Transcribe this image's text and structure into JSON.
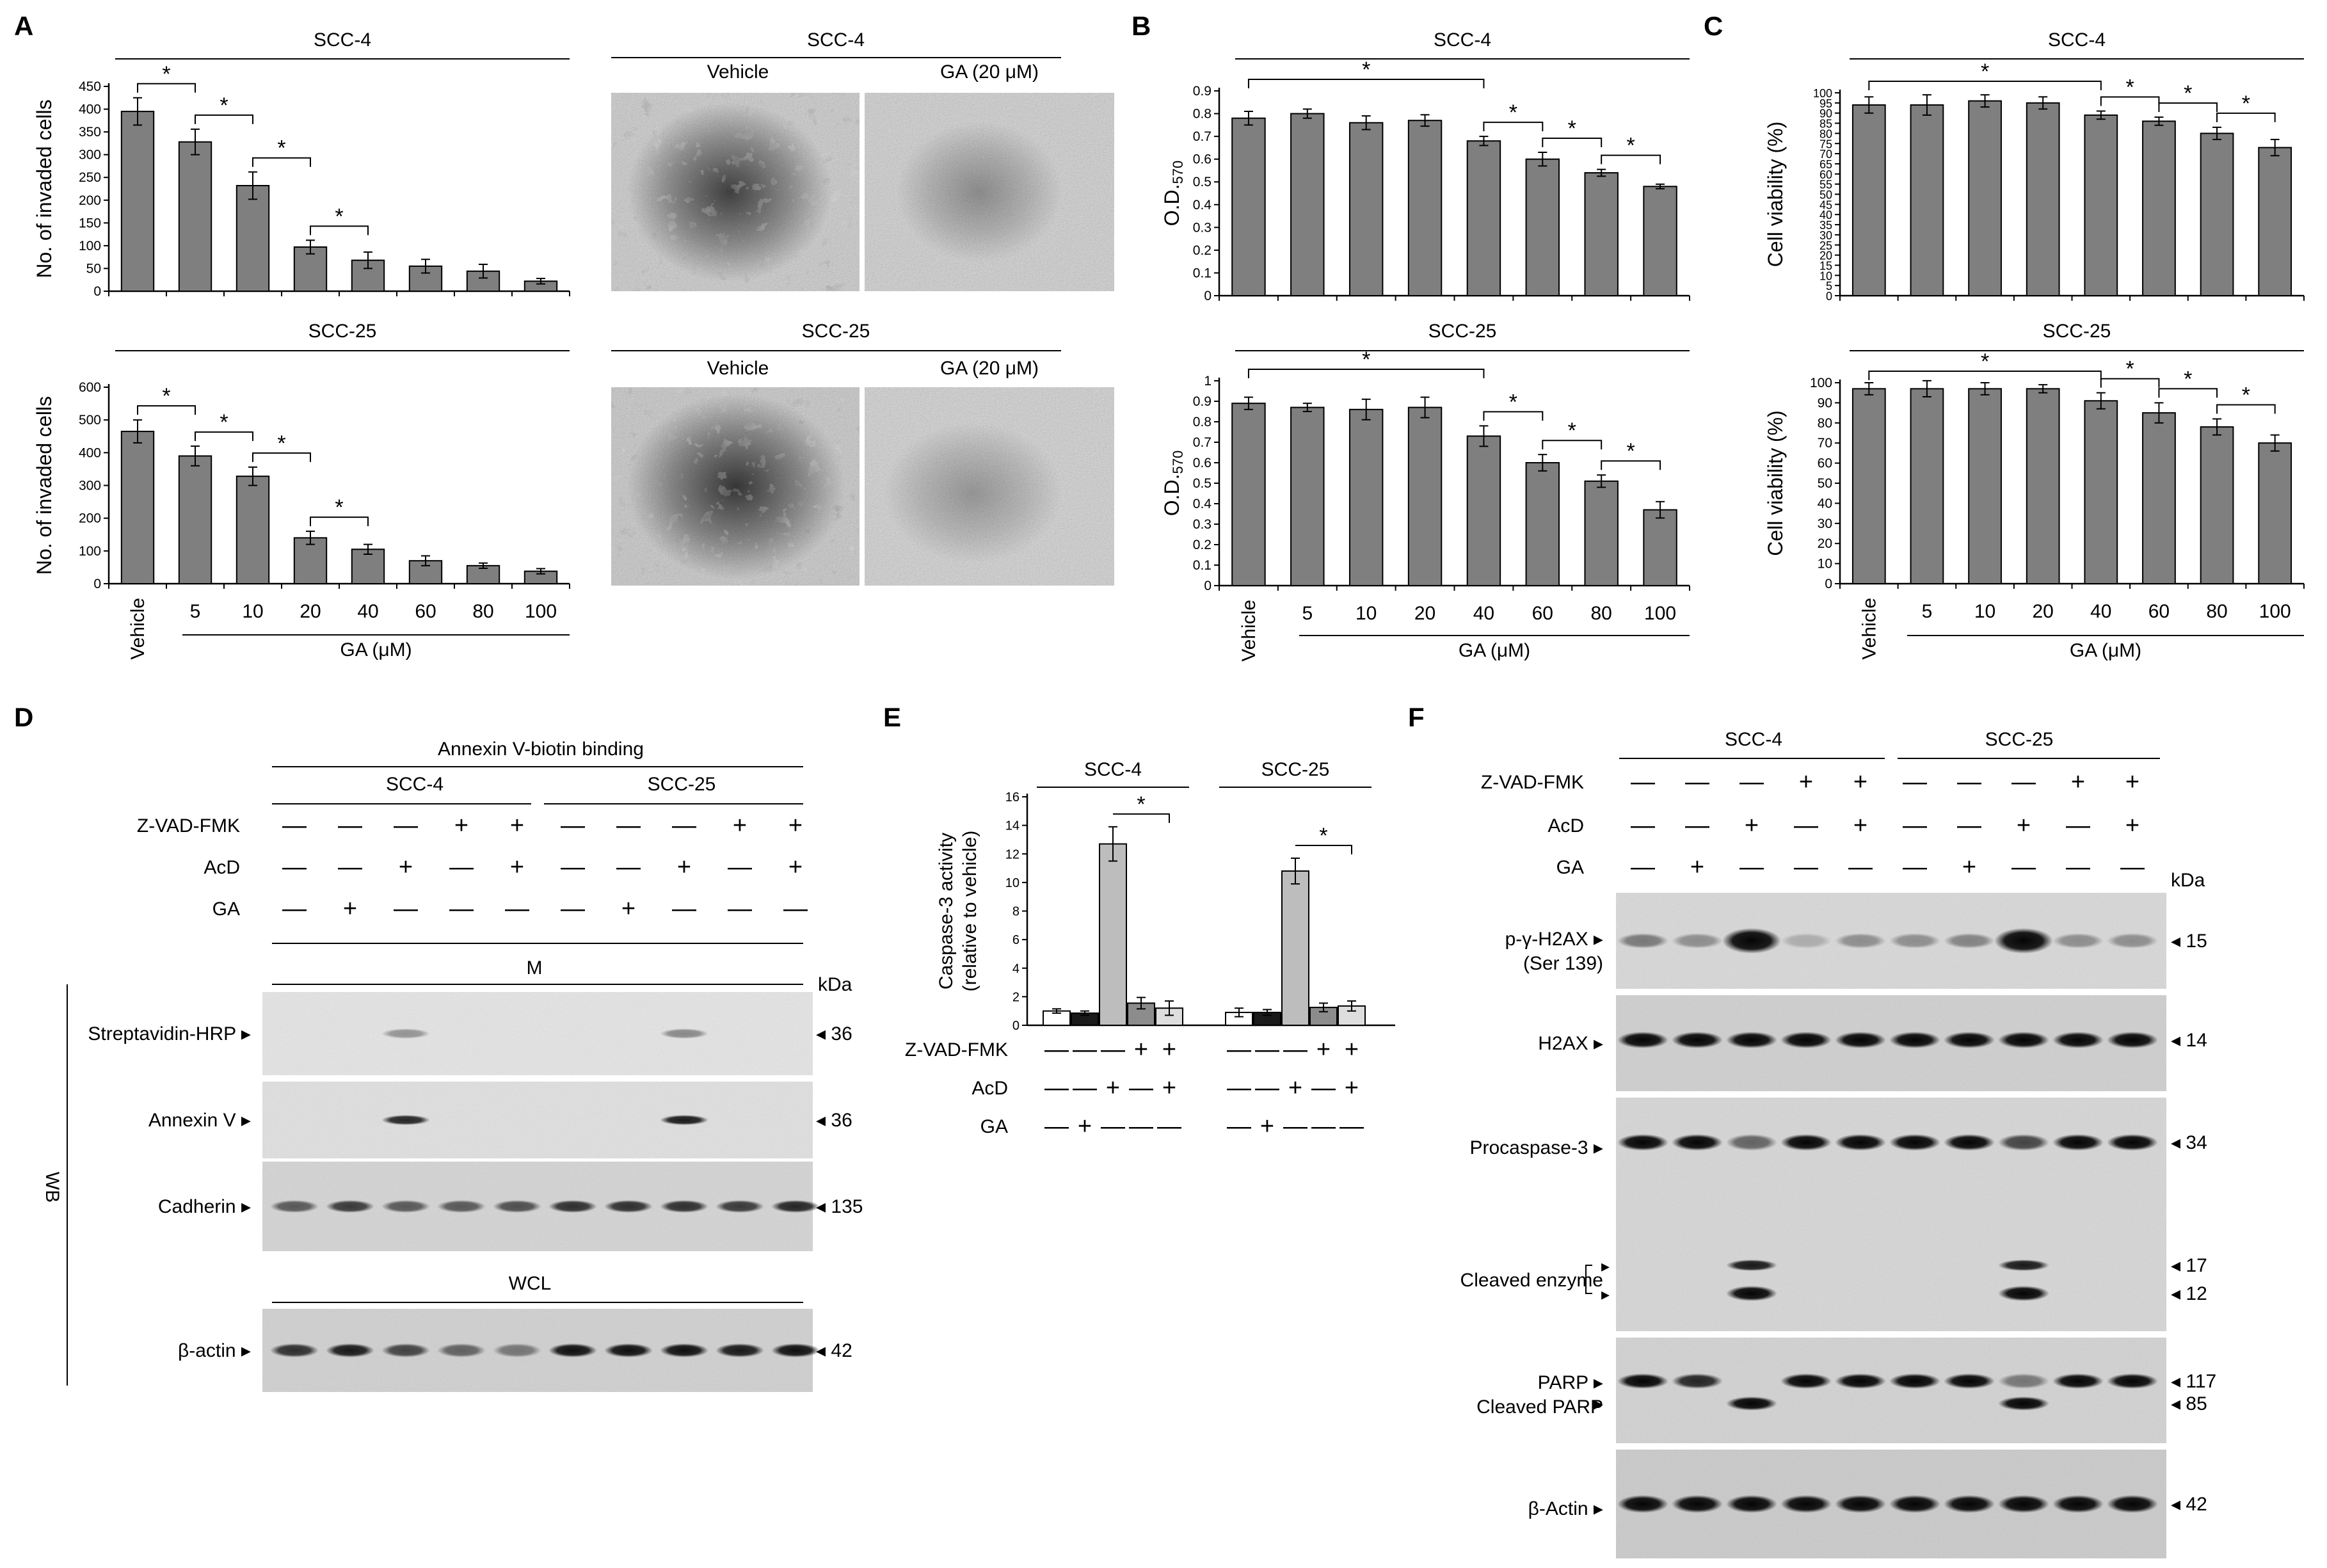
{
  "panel_labels": [
    "A",
    "B",
    "C",
    "D",
    "E",
    "F"
  ],
  "units": {
    "gam": "GA (μM)",
    "kda": "kDa"
  },
  "panelA": {
    "micro_titles": [
      "SCC-4",
      "SCC-25"
    ],
    "micro_headers": {
      "vehicle": "Vehicle",
      "ga": "GA (20 μM)"
    }
  },
  "panelD": {
    "title": "Annexin V-biotin binding",
    "groups": [
      "SCC-4",
      "SCC-25"
    ],
    "treatments": [
      "Z-VAD-FMK",
      "AcD",
      "GA"
    ],
    "signs": [
      [
        "—",
        "—",
        "—",
        "+",
        "+",
        "—",
        "—",
        "—",
        "+",
        "+"
      ],
      [
        "—",
        "—",
        "+",
        "—",
        "+",
        "—",
        "—",
        "+",
        "—",
        "+"
      ],
      [
        "—",
        "+",
        "—",
        "—",
        "—",
        "—",
        "+",
        "—",
        "—",
        "—"
      ]
    ],
    "fraction_m": "M",
    "fraction_wcl": "WCL",
    "wb": "WB",
    "blots": [
      {
        "name": "Streptavidin-HRP",
        "kda": "36"
      },
      {
        "name": "Annexin V",
        "kda": "36"
      },
      {
        "name": "Cadherin",
        "kda": "135"
      },
      {
        "name": "β-actin",
        "kda": "42"
      }
    ]
  },
  "panelE": {
    "signs": [
      [
        "—",
        "—",
        "—",
        "+",
        "+"
      ],
      [
        "—",
        "—",
        "+",
        "—",
        "+"
      ],
      [
        "—",
        "+",
        "—",
        "—",
        "—"
      ]
    ]
  },
  "panelF": {
    "groups": [
      "SCC-4",
      "SCC-25"
    ],
    "treatments": [
      "Z-VAD-FMK",
      "AcD",
      "GA"
    ],
    "signs": [
      [
        "—",
        "—",
        "—",
        "+",
        "+",
        "—",
        "—",
        "—",
        "+",
        "+"
      ],
      [
        "—",
        "—",
        "+",
        "—",
        "+",
        "—",
        "—",
        "+",
        "—",
        "+"
      ],
      [
        "—",
        "+",
        "—",
        "—",
        "—",
        "—",
        "+",
        "—",
        "—",
        "—"
      ]
    ],
    "blots": [
      {
        "name": "p-γ-H2AX",
        "name2": "(Ser 139)",
        "kda": [
          "15"
        ]
      },
      {
        "name": "H2AX",
        "kda": [
          "14"
        ]
      },
      {
        "name": "Procaspase-3",
        "name2": "Cleaved enzyme",
        "kda": [
          "34",
          "17",
          "12"
        ]
      },
      {
        "name": "PARP",
        "name2": "Cleaved PARP",
        "kda": [
          "117",
          "85"
        ]
      },
      {
        "name": "β-Actin",
        "kda": [
          "42"
        ]
      }
    ]
  },
  "chart_data": [
    {
      "id": "A1",
      "type": "bar",
      "title": "SCC-4",
      "ylabel": "No. of invaded cells",
      "xlabel": "",
      "categories": [
        "Vehicle",
        "5",
        "10",
        "20",
        "40",
        "60",
        "80",
        "100"
      ],
      "values": [
        395,
        328,
        232,
        97,
        68,
        55,
        44,
        22
      ],
      "errors": [
        30,
        28,
        30,
        15,
        18,
        15,
        15,
        6
      ],
      "ylim": [
        0,
        450
      ],
      "yticks": [
        0,
        50,
        100,
        150,
        200,
        250,
        300,
        350,
        400,
        450
      ],
      "sig": [
        [
          0,
          1
        ],
        [
          1,
          2
        ],
        [
          2,
          3
        ],
        [
          3,
          4
        ]
      ],
      "star": "*"
    },
    {
      "id": "A2",
      "type": "bar",
      "title": "SCC-25",
      "ylabel": "No. of invaded cells",
      "xlabel": "GA (μM)",
      "categories": [
        "Vehicle",
        "5",
        "10",
        "20",
        "40",
        "60",
        "80",
        "100"
      ],
      "values": [
        465,
        390,
        328,
        140,
        105,
        70,
        55,
        38
      ],
      "errors": [
        35,
        30,
        28,
        20,
        15,
        15,
        8,
        8
      ],
      "ylim": [
        0,
        600
      ],
      "yticks": [
        0,
        100,
        200,
        300,
        400,
        500,
        600
      ],
      "sig": [
        [
          0,
          1
        ],
        [
          1,
          2
        ],
        [
          2,
          3
        ],
        [
          3,
          4
        ]
      ],
      "star": "*"
    },
    {
      "id": "B1",
      "type": "bar",
      "title": "SCC-4",
      "ylabel": "O.D.570",
      "xlabel": "",
      "categories": [
        "Vehicle",
        "5",
        "10",
        "20",
        "40",
        "60",
        "80",
        "100"
      ],
      "values": [
        0.78,
        0.8,
        0.76,
        0.77,
        0.68,
        0.6,
        0.54,
        0.48
      ],
      "errors": [
        0.03,
        0.02,
        0.03,
        0.025,
        0.02,
        0.03,
        0.015,
        0.01
      ],
      "ylim": [
        0,
        0.9
      ],
      "yticks": [
        0,
        0.1,
        0.2,
        0.3,
        0.4,
        0.5,
        0.6,
        0.7,
        0.8,
        0.9
      ],
      "sig": [
        [
          0,
          4
        ],
        [
          4,
          5
        ],
        [
          5,
          6
        ],
        [
          6,
          7
        ]
      ],
      "star": "*"
    },
    {
      "id": "B2",
      "type": "bar",
      "title": "SCC-25",
      "ylabel": "O.D.570",
      "xlabel": "GA (μM)",
      "categories": [
        "Vehicle",
        "5",
        "10",
        "20",
        "40",
        "60",
        "80",
        "100"
      ],
      "values": [
        0.89,
        0.87,
        0.86,
        0.87,
        0.73,
        0.6,
        0.51,
        0.37
      ],
      "errors": [
        0.03,
        0.02,
        0.05,
        0.05,
        0.05,
        0.04,
        0.03,
        0.04
      ],
      "ylim": [
        0,
        1
      ],
      "yticks": [
        0,
        0.1,
        0.2,
        0.3,
        0.4,
        0.5,
        0.6,
        0.7,
        0.8,
        0.9,
        1
      ],
      "sig": [
        [
          0,
          4
        ],
        [
          4,
          5
        ],
        [
          5,
          6
        ],
        [
          6,
          7
        ]
      ],
      "star": "*"
    },
    {
      "id": "C1",
      "type": "bar",
      "title": "SCC-4",
      "ylabel": "Cell viability (%)",
      "xlabel": "",
      "categories": [
        "Vehicle",
        "5",
        "10",
        "20",
        "40",
        "60",
        "80",
        "100"
      ],
      "values": [
        94,
        94,
        96,
        95,
        89,
        86,
        80,
        73
      ],
      "errors": [
        4,
        5,
        3,
        3,
        2,
        2,
        3,
        4
      ],
      "ylim": [
        0,
        100
      ],
      "yticks": [
        0,
        5,
        10,
        15,
        20,
        25,
        30,
        35,
        40,
        45,
        50,
        55,
        60,
        65,
        70,
        75,
        80,
        85,
        90,
        95,
        100
      ],
      "sig": [
        [
          0,
          4
        ],
        [
          4,
          5
        ],
        [
          5,
          6
        ],
        [
          6,
          7
        ]
      ],
      "star": "*"
    },
    {
      "id": "C2",
      "type": "bar",
      "title": "SCC-25",
      "ylabel": "Cell viability (%)",
      "xlabel": "GA (μM)",
      "categories": [
        "Vehicle",
        "5",
        "10",
        "20",
        "40",
        "60",
        "80",
        "100"
      ],
      "values": [
        97,
        97,
        97,
        97,
        91,
        85,
        78,
        70
      ],
      "errors": [
        3,
        4,
        3,
        2,
        4,
        5,
        4,
        4
      ],
      "ylim": [
        0,
        100
      ],
      "yticks": [
        0,
        10,
        20,
        30,
        40,
        50,
        60,
        70,
        80,
        90,
        100
      ],
      "sig": [
        [
          0,
          4
        ],
        [
          4,
          5
        ],
        [
          5,
          6
        ],
        [
          6,
          7
        ]
      ],
      "star": "*"
    },
    {
      "id": "E",
      "type": "bar",
      "title": "",
      "ylabel": "Caspase-3 activity\n(relative to vehicle)",
      "groups": [
        "SCC-4",
        "SCC-25"
      ],
      "bar_colors": [
        "#ffffff",
        "#1a1a1a",
        "#bdbdbd",
        "#8c8c8c",
        "#dedede"
      ],
      "values": [
        [
          1,
          0.85,
          12.7,
          1.55,
          1.2
        ],
        [
          0.9,
          0.9,
          10.8,
          1.25,
          1.35
        ]
      ],
      "errors": [
        [
          0.15,
          0.15,
          1.2,
          0.4,
          0.5
        ],
        [
          0.3,
          0.2,
          0.9,
          0.3,
          0.35
        ]
      ],
      "ylim": [
        0,
        16
      ],
      "yticks": [
        0,
        2,
        4,
        6,
        8,
        10,
        12,
        14,
        16
      ],
      "sig": [
        [
          2,
          4
        ]
      ],
      "star": "*"
    }
  ]
}
